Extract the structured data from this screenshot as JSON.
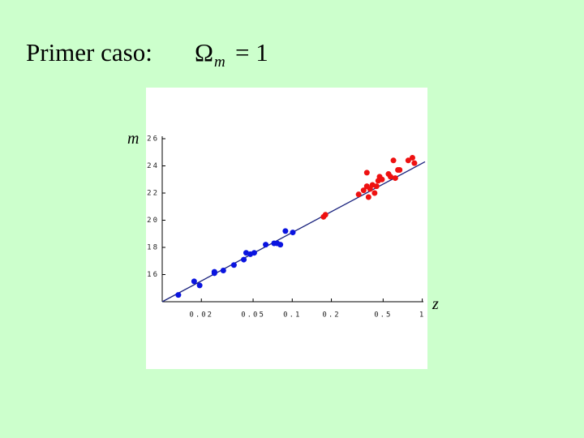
{
  "chart_data": {
    "type": "scatter",
    "title": "Primer caso:",
    "annotations": [
      "Ω",
      "m",
      "= 1"
    ],
    "xlabel": "z",
    "ylabel": "m",
    "xscale": "log",
    "xlim": [
      0.01,
      1.05
    ],
    "ylim": [
      14,
      26
    ],
    "xticks": [
      0.02,
      0.05,
      0.1,
      0.2,
      0.5,
      1
    ],
    "yticks": [
      16,
      18,
      20,
      22,
      24,
      26
    ],
    "grid": false,
    "series": [
      {
        "kind": "points",
        "color": "#0a14e0",
        "x": [
          0.0133,
          0.0176,
          0.0194,
          0.0252,
          0.0252,
          0.0295,
          0.0356,
          0.0424,
          0.0442,
          0.0476,
          0.051,
          0.0625,
          0.0725,
          0.0766,
          0.081,
          0.0886,
          0.101
        ],
        "values": [
          14.5,
          15.5,
          15.2,
          16.2,
          16.1,
          16.3,
          16.7,
          17.1,
          17.6,
          17.5,
          17.6,
          18.2,
          18.3,
          18.3,
          18.2,
          19.2,
          19.1
        ]
      },
      {
        "kind": "points",
        "color": "#ee1111",
        "x": [
          0.174,
          0.18,
          0.324,
          0.354,
          0.375,
          0.386,
          0.397,
          0.375,
          0.414,
          0.43,
          0.445,
          0.458,
          0.47,
          0.49,
          0.55,
          0.57,
          0.6,
          0.62,
          0.65,
          0.67,
          0.78,
          0.84,
          0.87
        ],
        "values": [
          20.25,
          20.4,
          21.9,
          22.2,
          22.5,
          21.7,
          22.3,
          23.5,
          22.6,
          22.0,
          22.5,
          22.9,
          23.2,
          23.0,
          23.4,
          23.2,
          24.4,
          23.1,
          23.7,
          23.7,
          24.4,
          24.6,
          24.2
        ]
      },
      {
        "kind": "line",
        "color": "#1a237e",
        "x": [
          0.01,
          1.05
        ],
        "values": [
          14.0,
          24.3
        ]
      }
    ]
  }
}
